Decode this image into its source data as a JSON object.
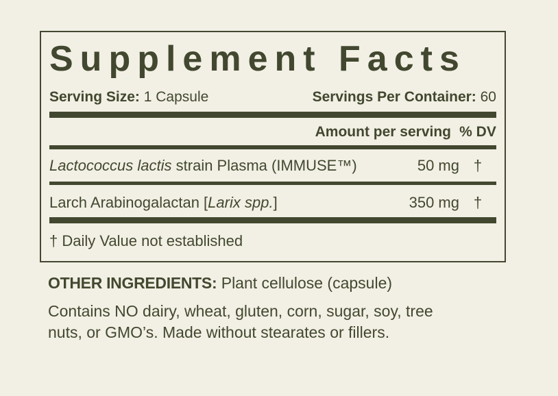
{
  "colors": {
    "bg": "#f2efe4",
    "ink": "#42482f"
  },
  "panel": {
    "title": "Supplement Facts",
    "serving_size_label": "Serving Size:",
    "serving_size_value": " 1 Capsule",
    "servings_per_container_label": "Servings Per Container:",
    "servings_per_container_value": " 60",
    "column_header": {
      "amount": "Amount per serving",
      "dv": "% DV"
    },
    "rows": [
      {
        "name_pre": "",
        "name_italic": "Lactococcus lactis",
        "name_post": " strain Plasma (IMMUSE™)",
        "amount": "50 mg",
        "dv": "†"
      },
      {
        "name_pre": "Larch Arabinogalactan [",
        "name_italic": "Larix spp.",
        "name_post": "]",
        "amount": "350 mg",
        "dv": "†"
      }
    ],
    "footnote": "† Daily Value not established"
  },
  "other_ingredients": {
    "label": "OTHER INGREDIENTS:",
    "value": " Plant cellulose (capsule)"
  },
  "allergen_statement": {
    "lines": [
      "Contains NO dairy, wheat, gluten, corn, sugar, soy, tree",
      "nuts, or GMO’s. Made without stearates or fillers."
    ]
  }
}
